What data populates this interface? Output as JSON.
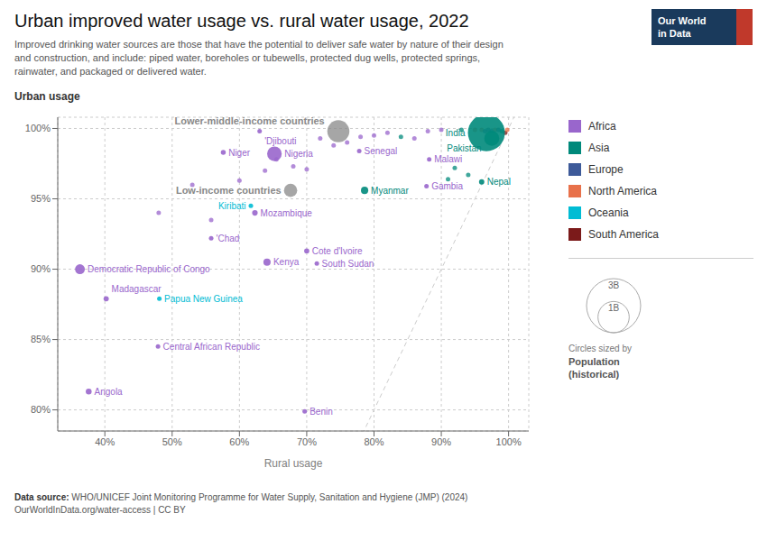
{
  "chart_data": {
    "type": "scatter",
    "title": "Urban improved water usage vs. rural water usage, 2022",
    "subtitle": "Improved drinking water sources are those that have the potential to deliver safe water by nature of their design\nand construction, and include: piped water, boreholes or tubewells, protected dug wells, protected springs,\nrainwater, and packaged or delivered water.",
    "xlabel": "Rural usage",
    "ylabel": "Urban usage",
    "xlim": [
      0.33,
      1.03
    ],
    "ylim": [
      0.785,
      1.008
    ],
    "xticks": [
      {
        "value": 0.4,
        "label": "40%"
      },
      {
        "value": 0.5,
        "label": "50%"
      },
      {
        "value": 0.6,
        "label": "60%"
      },
      {
        "value": 0.7,
        "label": "70%"
      },
      {
        "value": 0.8,
        "label": "80%"
      },
      {
        "value": 0.9,
        "label": "90%"
      },
      {
        "value": 1.0,
        "label": "100%"
      }
    ],
    "yticks": [
      {
        "value": 0.8,
        "label": "80%"
      },
      {
        "value": 0.85,
        "label": "85%"
      },
      {
        "value": 0.9,
        "label": "90%"
      },
      {
        "value": 0.95,
        "label": "95%"
      },
      {
        "value": 1.0,
        "label": "100%"
      }
    ],
    "grid": true,
    "legend": "right",
    "regions": [
      {
        "name": "Africa",
        "color": "#9966cc"
      },
      {
        "name": "Asia",
        "color": "#00897b"
      },
      {
        "name": "Europe",
        "color": "#3d5a99"
      },
      {
        "name": "North America",
        "color": "#e8714a"
      },
      {
        "name": "Oceania",
        "color": "#00bcd4"
      },
      {
        "name": "South America",
        "color": "#7b1a1a"
      }
    ],
    "reference_line": {
      "x": [
        0.33,
        1.03
      ],
      "y": [
        0.33,
        1.03
      ],
      "color": "#cccccc",
      "line_style": "dashed"
    },
    "points": [
      {
        "x": 0.48,
        "y": 0.94,
        "size": 2,
        "region": "Africa"
      },
      {
        "x": 0.53,
        "y": 0.96,
        "size": 2,
        "region": "Africa"
      },
      {
        "x": 0.558,
        "y": 0.935,
        "size": 2,
        "region": "Africa"
      },
      {
        "x": 0.6,
        "y": 0.963,
        "size": 2,
        "region": "Africa"
      },
      {
        "x": 0.638,
        "y": 0.97,
        "size": 2,
        "region": "Africa"
      },
      {
        "x": 0.655,
        "y": 0.978,
        "size": 2,
        "region": "Africa"
      },
      {
        "x": 0.68,
        "y": 0.973,
        "size": 3,
        "region": "Africa"
      },
      {
        "x": 0.7,
        "y": 0.971,
        "size": 2,
        "region": "Africa"
      },
      {
        "x": 0.72,
        "y": 0.993,
        "size": 2,
        "region": "Africa"
      },
      {
        "x": 0.74,
        "y": 0.988,
        "size": 2,
        "region": "Africa"
      },
      {
        "x": 0.76,
        "y": 0.99,
        "size": 2,
        "region": "Africa"
      },
      {
        "x": 0.78,
        "y": 0.994,
        "size": 2,
        "region": "Africa"
      },
      {
        "x": 0.8,
        "y": 0.995,
        "size": 2,
        "region": "Africa"
      },
      {
        "x": 0.82,
        "y": 0.997,
        "size": 2,
        "region": "Africa"
      },
      {
        "x": 0.84,
        "y": 0.994,
        "size": 2,
        "region": "Asia"
      },
      {
        "x": 0.86,
        "y": 0.993,
        "size": 3,
        "region": "Africa"
      },
      {
        "x": 0.88,
        "y": 0.998,
        "size": 2,
        "region": "Africa"
      },
      {
        "x": 0.9,
        "y": 0.999,
        "size": 2,
        "region": "Africa"
      },
      {
        "x": 0.91,
        "y": 0.964,
        "size": 2,
        "region": "Asia"
      },
      {
        "x": 0.92,
        "y": 0.972,
        "size": 2,
        "region": "Asia"
      },
      {
        "x": 0.93,
        "y": 0.999,
        "size": 2,
        "region": "Asia"
      },
      {
        "x": 0.94,
        "y": 0.967,
        "size": 3,
        "region": "Asia"
      },
      {
        "x": 0.95,
        "y": 0.999,
        "size": 2,
        "region": "North America"
      },
      {
        "x": 0.96,
        "y": 0.999,
        "size": 2,
        "region": "North America"
      },
      {
        "x": 0.965,
        "y": 0.998,
        "size": 2,
        "region": "Europe"
      },
      {
        "x": 0.97,
        "y": 0.999,
        "size": 2,
        "region": "Europe"
      },
      {
        "x": 0.975,
        "y": 0.998,
        "size": 2,
        "region": "Europe"
      },
      {
        "x": 0.98,
        "y": 0.999,
        "size": 2,
        "region": "North America"
      },
      {
        "x": 0.985,
        "y": 0.999,
        "size": 2,
        "region": "Europe"
      },
      {
        "x": 0.99,
        "y": 0.998,
        "size": 2,
        "region": "Asia"
      },
      {
        "x": 0.995,
        "y": 0.997,
        "size": 2,
        "region": "South America"
      },
      {
        "x": 0.998,
        "y": 0.999,
        "size": 2,
        "region": "North America"
      }
    ],
    "countries": [
      {
        "name": "Angola",
        "x": 0.376,
        "y": 0.813,
        "size": 35,
        "region": "Africa"
      },
      {
        "name": "Madagascar",
        "x": 0.402,
        "y": 0.879,
        "size": 28,
        "region": "Africa"
      },
      {
        "name": "Democratic Republic of Congo",
        "x": 0.363,
        "y": 0.9,
        "size": 99,
        "region": "Africa"
      },
      {
        "name": "Central African Republic",
        "x": 0.479,
        "y": 0.845,
        "size": 5,
        "region": "Africa"
      },
      {
        "name": "Papua New Guinea",
        "x": 0.481,
        "y": 0.879,
        "size": 10,
        "region": "Oceania"
      },
      {
        "name": "'Chad",
        "x": 0.558,
        "y": 0.922,
        "size": 17,
        "region": "Africa"
      },
      {
        "name": "Niger",
        "x": 0.576,
        "y": 0.983,
        "size": 25,
        "region": "Africa"
      },
      {
        "name": "Kiribati",
        "x": 0.617,
        "y": 0.945,
        "size": 0.12,
        "region": "Oceania"
      },
      {
        "name": "Mozambique",
        "x": 0.623,
        "y": 0.94,
        "size": 32,
        "region": "Africa"
      },
      {
        "name": "Kenya",
        "x": 0.641,
        "y": 0.905,
        "size": 54,
        "region": "Africa"
      },
      {
        "name": "'Djibouti",
        "x": 0.63,
        "y": 0.998,
        "size": 1.1,
        "region": "Africa"
      },
      {
        "name": "Nigeria",
        "x": 0.652,
        "y": 0.982,
        "size": 218,
        "region": "Africa"
      },
      {
        "name": "Cote d'Ivoire",
        "x": 0.7,
        "y": 0.913,
        "size": 27,
        "region": "Africa"
      },
      {
        "name": "South Sudan",
        "x": 0.715,
        "y": 0.904,
        "size": 11,
        "region": "Africa"
      },
      {
        "name": "Benin",
        "x": 0.697,
        "y": 0.799,
        "size": 13,
        "region": "Africa"
      },
      {
        "name": "Senegal",
        "x": 0.778,
        "y": 0.984,
        "size": 17,
        "region": "Africa"
      },
      {
        "name": "Myanmar",
        "x": 0.786,
        "y": 0.956,
        "size": 54,
        "region": "Asia"
      },
      {
        "name": "Malawi",
        "x": 0.882,
        "y": 0.978,
        "size": 20,
        "region": "Africa"
      },
      {
        "name": "Gambia",
        "x": 0.878,
        "y": 0.959,
        "size": 2.5,
        "region": "Africa"
      },
      {
        "name": "Nepal",
        "x": 0.96,
        "y": 0.962,
        "size": 29,
        "region": "Asia"
      },
      {
        "name": "India",
        "x": 0.967,
        "y": 0.997,
        "size": 1400,
        "region": "Asia"
      },
      {
        "name": "Pakistan",
        "x": 0.975,
        "y": 0.993,
        "size": 230,
        "region": "Asia"
      }
    ],
    "aggregates": {
      "color": "#888888",
      "points": [
        {
          "name": "Lower-middle-income countries",
          "x": 0.747,
          "y": 0.998,
          "size": 500
        },
        {
          "name": "Low-income countries",
          "x": 0.676,
          "y": 0.956,
          "size": 180
        }
      ]
    },
    "size_legend": {
      "values": [
        3000,
        1000
      ],
      "labels": [
        "3B",
        "1B"
      ],
      "caption": "Circles sized by",
      "title": "Population\n(historical)"
    },
    "logo": {
      "text": [
        "Our World",
        "in Data"
      ],
      "colors": [
        "#1a3a5c",
        "#c0392b"
      ]
    },
    "source": {
      "label": "Data source:",
      "text": " WHO/UNICEF Joint Monitoring Programme for Water Supply, Sanitation and Hygiene (JMP) (2024)\nOurWorldInData.org/water-access | CC BY"
    }
  }
}
